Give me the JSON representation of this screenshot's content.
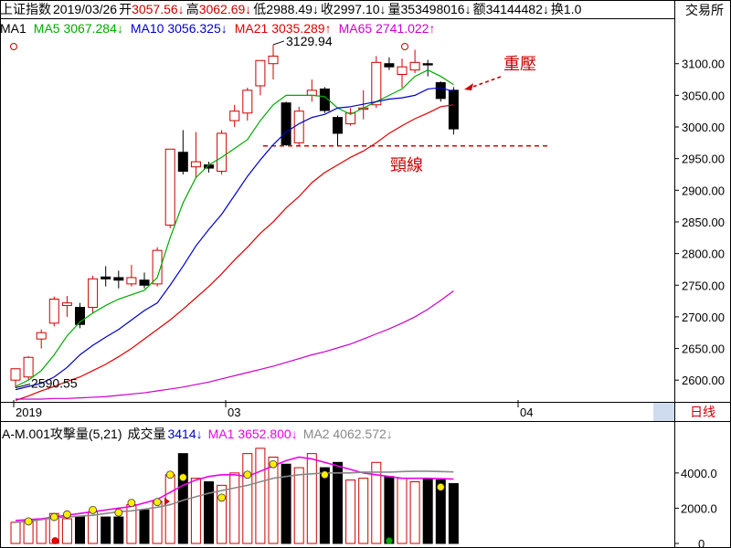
{
  "header": {
    "index_name": "上证指数",
    "date": "2019/03/26",
    "open_label": "开",
    "open_value": "3057.56↓",
    "high_label": "高",
    "high_value": "3062.69↓",
    "low_label": "低",
    "low_value": "2988.49↓",
    "close_label": "收",
    "close_value": "2997.10↓",
    "volume_label": "量",
    "volume_value": "353498016↓",
    "amount_label": "额",
    "amount_value": "34144482↓",
    "turnover_label": "换",
    "turnover_value": "1.0",
    "exchange_button": "交易所"
  },
  "ma_legend": {
    "label": "MA1",
    "ma5": "MA5 3067.284↓",
    "ma10": "MA10 3056.325↓",
    "ma21": "MA21 3035.289↑",
    "ma65": "MA65 2741.022↑"
  },
  "colors": {
    "up": "#cc0000",
    "down": "#000000",
    "ma5": "#00aa00",
    "ma10": "#0000cc",
    "ma21": "#dd0000",
    "ma65": "#cc00cc",
    "vol_ma1": "#ee00ee",
    "vol_ma2": "#888888",
    "neckline": "#dd0000",
    "annotation": "#cc0000",
    "dot_yellow": "#ffee00",
    "dot_red": "#ee0000",
    "dot_green": "#00aa00"
  },
  "annotations": {
    "resistance": "重壓",
    "neckline": "頸線",
    "high_marker": "3129.94",
    "low_marker": "2590.55"
  },
  "volume_panel": {
    "indicator_label": "A-M.001攻擊量(5,21)",
    "volume_label": "成交量",
    "volume_value": "3414↓",
    "ma1": "MA1 3652.800↓",
    "ma2": "MA2 4062.572↓"
  },
  "period_button": "日线",
  "chart_data": {
    "type": "candlestick",
    "price_axis": {
      "ylim": [
        2570,
        3140
      ],
      "ticks": [
        2600,
        2650,
        2700,
        2750,
        2800,
        2850,
        2900,
        2950,
        3000,
        3050,
        3100
      ],
      "tick_labels": [
        "2600.00",
        "2650.00",
        "2700.00",
        "2750.00",
        "2800.00",
        "2850.00",
        "2900.00",
        "2950.00",
        "3000.00",
        "3050.00",
        "3100.00"
      ]
    },
    "volume_axis": {
      "ylim": [
        0,
        5600
      ],
      "tick_labels": [
        "4000.0",
        "2000.0",
        "0"
      ],
      "ticks": [
        4000,
        2000,
        0
      ]
    },
    "x_ticks": [
      {
        "index": 0,
        "label": "2019"
      },
      {
        "index": 16,
        "label": "03"
      },
      {
        "index": 38,
        "label": "04"
      }
    ],
    "neckline_value": 2970,
    "candles": [
      {
        "o": 2600,
        "h": 2615,
        "l": 2588,
        "c": 2618
      },
      {
        "o": 2605,
        "h": 2638,
        "l": 2600,
        "c": 2636
      },
      {
        "o": 2665,
        "h": 2680,
        "l": 2650,
        "c": 2675
      },
      {
        "o": 2690,
        "h": 2732,
        "l": 2685,
        "c": 2728
      },
      {
        "o": 2718,
        "h": 2733,
        "l": 2700,
        "c": 2722
      },
      {
        "o": 2715,
        "h": 2722,
        "l": 2682,
        "c": 2688
      },
      {
        "o": 2715,
        "h": 2765,
        "l": 2705,
        "c": 2760
      },
      {
        "o": 2763,
        "h": 2780,
        "l": 2748,
        "c": 2760
      },
      {
        "o": 2762,
        "h": 2773,
        "l": 2745,
        "c": 2758
      },
      {
        "o": 2752,
        "h": 2782,
        "l": 2748,
        "c": 2762
      },
      {
        "o": 2758,
        "h": 2770,
        "l": 2745,
        "c": 2750
      },
      {
        "o": 2752,
        "h": 2810,
        "l": 2748,
        "c": 2805
      },
      {
        "o": 2845,
        "h": 2965,
        "l": 2840,
        "c": 2965
      },
      {
        "o": 2960,
        "h": 2995,
        "l": 2925,
        "c": 2930
      },
      {
        "o": 2937,
        "h": 2992,
        "l": 2920,
        "c": 2945
      },
      {
        "o": 2940,
        "h": 2945,
        "l": 2928,
        "c": 2935
      },
      {
        "o": 2930,
        "h": 2995,
        "l": 2925,
        "c": 2990
      },
      {
        "o": 3010,
        "h": 3035,
        "l": 3000,
        "c": 3025
      },
      {
        "o": 3022,
        "h": 3062,
        "l": 3010,
        "c": 3058
      },
      {
        "o": 3065,
        "h": 3103,
        "l": 3050,
        "c": 3105
      },
      {
        "o": 3100,
        "h": 3130,
        "l": 3075,
        "c": 3112
      },
      {
        "o": 3038,
        "h": 3040,
        "l": 2970,
        "c": 2972
      },
      {
        "o": 2975,
        "h": 3032,
        "l": 2970,
        "c": 3025
      },
      {
        "o": 3050,
        "h": 3075,
        "l": 3040,
        "c": 3058
      },
      {
        "o": 3060,
        "h": 3063,
        "l": 3022,
        "c": 3026
      },
      {
        "o": 3015,
        "h": 3018,
        "l": 2970,
        "c": 2990
      },
      {
        "o": 3005,
        "h": 3030,
        "l": 3002,
        "c": 3022
      },
      {
        "o": 3028,
        "h": 3058,
        "l": 3012,
        "c": 3030
      },
      {
        "o": 3035,
        "h": 3112,
        "l": 3030,
        "c": 3102
      },
      {
        "o": 3100,
        "h": 3110,
        "l": 3090,
        "c": 3095
      },
      {
        "o": 3083,
        "h": 3108,
        "l": 3062,
        "c": 3095
      },
      {
        "o": 3090,
        "h": 3122,
        "l": 3085,
        "c": 3102
      },
      {
        "o": 3100,
        "h": 3106,
        "l": 3080,
        "c": 3098
      },
      {
        "o": 3070,
        "h": 3072,
        "l": 3040,
        "c": 3045
      },
      {
        "o": 3058,
        "h": 3063,
        "l": 2988,
        "c": 2997
      }
    ],
    "volume": [
      1200,
      1300,
      1400,
      1700,
      1400,
      1500,
      1800,
      1500,
      1500,
      2200,
      1900,
      2400,
      3900,
      5100,
      3700,
      3500,
      3300,
      4000,
      5100,
      5400,
      4900,
      4500,
      4300,
      5100,
      4300,
      4600,
      3600,
      3700,
      4600,
      3800,
      3700,
      3500,
      3700,
      3600,
      3400
    ],
    "series": [
      {
        "name": "MA5",
        "color_key": "ma5",
        "values": [
          2590,
          2600,
          2615,
          2640,
          2670,
          2692,
          2706,
          2718,
          2728,
          2735,
          2742,
          2762,
          2825,
          2880,
          2920,
          2940,
          2952,
          2966,
          2980,
          3010,
          3035,
          3050,
          3050,
          3050,
          3048,
          3030,
          3020,
          3030,
          3040,
          3050,
          3060,
          3080,
          3090,
          3080,
          3067
        ]
      },
      {
        "name": "MA10",
        "color_key": "ma10",
        "values": [
          2585,
          2590,
          2595,
          2605,
          2620,
          2640,
          2655,
          2668,
          2680,
          2695,
          2710,
          2722,
          2750,
          2780,
          2812,
          2838,
          2862,
          2892,
          2922,
          2948,
          2972,
          2992,
          3005,
          3015,
          3020,
          3030,
          3032,
          3036,
          3040,
          3044,
          3046,
          3050,
          3060,
          3062,
          3056
        ]
      },
      {
        "name": "MA21",
        "color_key": "ma21",
        "values": [
          2568,
          2575,
          2583,
          2590,
          2598,
          2605,
          2615,
          2625,
          2637,
          2650,
          2665,
          2680,
          2695,
          2712,
          2730,
          2748,
          2768,
          2790,
          2810,
          2832,
          2850,
          2872,
          2890,
          2912,
          2928,
          2940,
          2952,
          2962,
          2975,
          2990,
          3002,
          3013,
          3022,
          3032,
          3035
        ]
      },
      {
        "name": "MA65",
        "color_key": "ma65",
        "values": [
          2570,
          2570,
          2570,
          2571,
          2571,
          2572,
          2573,
          2574,
          2576,
          2578,
          2580,
          2583,
          2586,
          2589,
          2593,
          2597,
          2602,
          2607,
          2612,
          2617,
          2622,
          2628,
          2634,
          2640,
          2645,
          2651,
          2657,
          2665,
          2673,
          2681,
          2690,
          2700,
          2712,
          2726,
          2741
        ]
      }
    ],
    "vol_series": [
      {
        "name": "MA1",
        "color_key": "vol_ma1",
        "values": [
          1300,
          1350,
          1400,
          1500,
          1600,
          1700,
          1800,
          1900,
          2000,
          2100,
          2300,
          2500,
          2900,
          3300,
          3600,
          3800,
          3900,
          3900,
          3800,
          4100,
          4400,
          4700,
          4900,
          4800,
          4600,
          4400,
          4200,
          4000,
          3900,
          3800,
          3700,
          3700,
          3700,
          3680,
          3653
        ]
      },
      {
        "name": "MA2",
        "color_key": "vol_ma2",
        "values": [
          1200,
          1250,
          1350,
          1450,
          1500,
          1550,
          1600,
          1700,
          1800,
          1850,
          1950,
          2050,
          2200,
          2450,
          2650,
          2850,
          3000,
          3150,
          3300,
          3500,
          3700,
          3800,
          3900,
          3950,
          4000,
          4000,
          4000,
          4050,
          4050,
          4050,
          4080,
          4100,
          4100,
          4080,
          4063
        ]
      }
    ],
    "yellow_dots": [
      {
        "i": 1,
        "v": 1250
      },
      {
        "i": 3,
        "v": 1500
      },
      {
        "i": 4,
        "v": 1650
      },
      {
        "i": 6,
        "v": 1900
      },
      {
        "i": 8,
        "v": 1750
      },
      {
        "i": 9,
        "v": 2300
      },
      {
        "i": 11,
        "v": 2350
      },
      {
        "i": 12,
        "v": 3900
      },
      {
        "i": 13,
        "v": 3750
      },
      {
        "i": 16,
        "v": 2600
      },
      {
        "i": 18,
        "v": 3900
      },
      {
        "i": 20,
        "v": 4500
      },
      {
        "i": 24,
        "v": 3900
      },
      {
        "i": 33,
        "v": 3200
      }
    ]
  }
}
